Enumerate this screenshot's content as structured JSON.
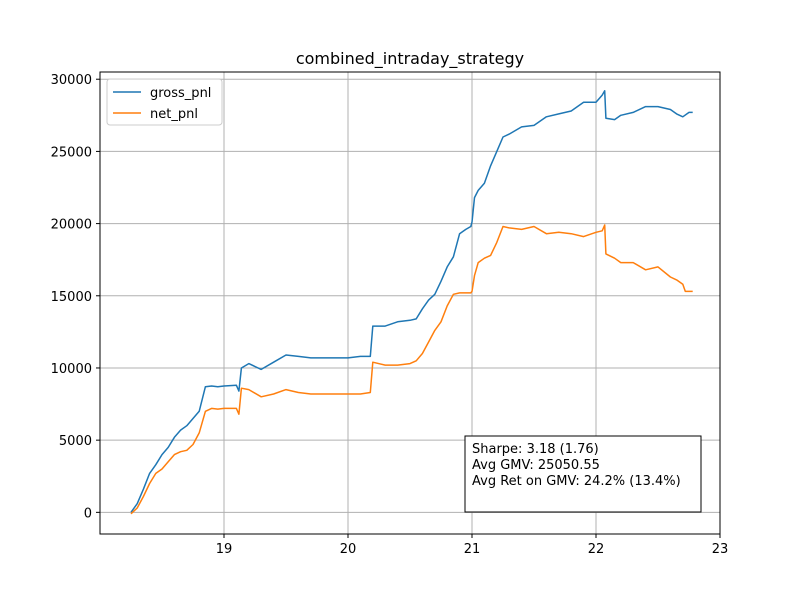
{
  "chart_data": {
    "type": "line",
    "title": "combined_intraday_strategy",
    "xlabel": "",
    "ylabel": "",
    "xlim": [
      18.0,
      23.0
    ],
    "ylim": [
      -1500,
      30500
    ],
    "xticks": [
      19,
      20,
      21,
      22,
      23
    ],
    "yticks": [
      0,
      5000,
      10000,
      15000,
      20000,
      25000,
      30000
    ],
    "grid": true,
    "legend_position": "top-left",
    "series": [
      {
        "name": "gross_pnl",
        "color": "#1f77b4",
        "points": [
          [
            18.25,
            0
          ],
          [
            18.3,
            600
          ],
          [
            18.35,
            1600
          ],
          [
            18.4,
            2700
          ],
          [
            18.45,
            3300
          ],
          [
            18.5,
            4000
          ],
          [
            18.55,
            4500
          ],
          [
            18.6,
            5200
          ],
          [
            18.65,
            5700
          ],
          [
            18.7,
            6000
          ],
          [
            18.75,
            6500
          ],
          [
            18.8,
            7000
          ],
          [
            18.85,
            8700
          ],
          [
            18.9,
            8750
          ],
          [
            18.95,
            8700
          ],
          [
            19.0,
            8750
          ],
          [
            19.1,
            8800
          ],
          [
            19.12,
            8400
          ],
          [
            19.14,
            10000
          ],
          [
            19.2,
            10300
          ],
          [
            19.3,
            9900
          ],
          [
            19.4,
            10400
          ],
          [
            19.5,
            10900
          ],
          [
            19.6,
            10800
          ],
          [
            19.7,
            10700
          ],
          [
            19.8,
            10700
          ],
          [
            20.0,
            10700
          ],
          [
            20.1,
            10800
          ],
          [
            20.18,
            10800
          ],
          [
            20.2,
            12900
          ],
          [
            20.3,
            12900
          ],
          [
            20.4,
            13200
          ],
          [
            20.5,
            13300
          ],
          [
            20.55,
            13400
          ],
          [
            20.6,
            14100
          ],
          [
            20.65,
            14700
          ],
          [
            20.7,
            15100
          ],
          [
            20.75,
            16000
          ],
          [
            20.8,
            17000
          ],
          [
            20.85,
            17700
          ],
          [
            20.9,
            19300
          ],
          [
            20.95,
            19600
          ],
          [
            20.99,
            19800
          ],
          [
            21.0,
            20100
          ],
          [
            21.02,
            21800
          ],
          [
            21.05,
            22300
          ],
          [
            21.1,
            22800
          ],
          [
            21.15,
            24000
          ],
          [
            21.2,
            25000
          ],
          [
            21.25,
            26000
          ],
          [
            21.3,
            26200
          ],
          [
            21.4,
            26700
          ],
          [
            21.5,
            26800
          ],
          [
            21.6,
            27400
          ],
          [
            21.7,
            27600
          ],
          [
            21.8,
            27800
          ],
          [
            21.9,
            28400
          ],
          [
            22.0,
            28400
          ],
          [
            22.05,
            28900
          ],
          [
            22.07,
            29200
          ],
          [
            22.08,
            27300
          ],
          [
            22.15,
            27200
          ],
          [
            22.2,
            27500
          ],
          [
            22.3,
            27700
          ],
          [
            22.4,
            28100
          ],
          [
            22.5,
            28100
          ],
          [
            22.6,
            27900
          ],
          [
            22.65,
            27600
          ],
          [
            22.7,
            27400
          ],
          [
            22.75,
            27700
          ],
          [
            22.78,
            27700
          ]
        ]
      },
      {
        "name": "net_pnl",
        "color": "#ff7f0e",
        "points": [
          [
            18.25,
            -100
          ],
          [
            18.3,
            300
          ],
          [
            18.35,
            1100
          ],
          [
            18.4,
            2000
          ],
          [
            18.45,
            2700
          ],
          [
            18.5,
            3000
          ],
          [
            18.55,
            3500
          ],
          [
            18.6,
            4000
          ],
          [
            18.65,
            4200
          ],
          [
            18.7,
            4300
          ],
          [
            18.75,
            4700
          ],
          [
            18.8,
            5500
          ],
          [
            18.85,
            7000
          ],
          [
            18.9,
            7200
          ],
          [
            18.95,
            7150
          ],
          [
            19.0,
            7200
          ],
          [
            19.1,
            7200
          ],
          [
            19.12,
            6800
          ],
          [
            19.14,
            8600
          ],
          [
            19.2,
            8500
          ],
          [
            19.3,
            8000
          ],
          [
            19.4,
            8200
          ],
          [
            19.5,
            8500
          ],
          [
            19.6,
            8300
          ],
          [
            19.7,
            8200
          ],
          [
            19.8,
            8200
          ],
          [
            20.0,
            8200
          ],
          [
            20.1,
            8200
          ],
          [
            20.18,
            8300
          ],
          [
            20.2,
            10400
          ],
          [
            20.3,
            10200
          ],
          [
            20.4,
            10200
          ],
          [
            20.5,
            10300
          ],
          [
            20.55,
            10500
          ],
          [
            20.6,
            11000
          ],
          [
            20.65,
            11800
          ],
          [
            20.7,
            12600
          ],
          [
            20.75,
            13200
          ],
          [
            20.8,
            14300
          ],
          [
            20.85,
            15100
          ],
          [
            20.9,
            15200
          ],
          [
            20.95,
            15200
          ],
          [
            20.99,
            15200
          ],
          [
            21.0,
            15300
          ],
          [
            21.02,
            16400
          ],
          [
            21.05,
            17300
          ],
          [
            21.1,
            17600
          ],
          [
            21.15,
            17800
          ],
          [
            21.2,
            18700
          ],
          [
            21.25,
            19800
          ],
          [
            21.3,
            19700
          ],
          [
            21.4,
            19600
          ],
          [
            21.5,
            19800
          ],
          [
            21.6,
            19300
          ],
          [
            21.7,
            19400
          ],
          [
            21.8,
            19300
          ],
          [
            21.9,
            19100
          ],
          [
            22.0,
            19400
          ],
          [
            22.05,
            19500
          ],
          [
            22.07,
            19900
          ],
          [
            22.08,
            17900
          ],
          [
            22.15,
            17600
          ],
          [
            22.2,
            17300
          ],
          [
            22.3,
            17300
          ],
          [
            22.4,
            16800
          ],
          [
            22.5,
            17000
          ],
          [
            22.6,
            16300
          ],
          [
            22.65,
            16100
          ],
          [
            22.7,
            15800
          ],
          [
            22.72,
            15300
          ],
          [
            22.78,
            15300
          ]
        ]
      }
    ],
    "annotation": {
      "lines": [
        "Sharpe: 3.18 (1.76)",
        "Avg GMV: 25050.55",
        "Avg Ret on GMV: 24.2% (13.4%)"
      ]
    }
  }
}
